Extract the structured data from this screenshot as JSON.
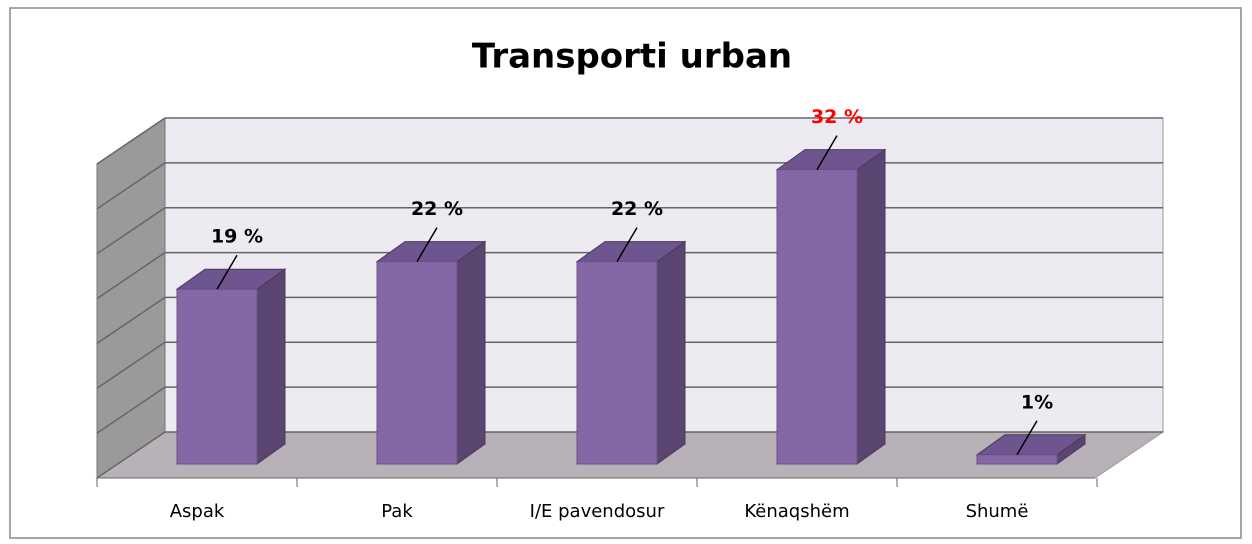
{
  "chart_data": {
    "type": "bar3d",
    "title": "Transporti urban",
    "categories": [
      "Aspak",
      "Pak",
      "I/E pavendosur",
      "Kënaqshëm",
      "Shumë"
    ],
    "values": [
      19,
      22,
      22,
      32,
      1
    ],
    "value_labels": [
      "19 %",
      "22 %",
      "22 %",
      "32 %",
      "1%"
    ],
    "value_label_colors": [
      "#000000",
      "#000000",
      "#000000",
      "#ff0000",
      "#000000"
    ],
    "color": "#8468a6",
    "ylim": [
      0,
      35
    ],
    "yticks": [
      0,
      5,
      10,
      15,
      20,
      25,
      30,
      35
    ],
    "grid": true
  }
}
